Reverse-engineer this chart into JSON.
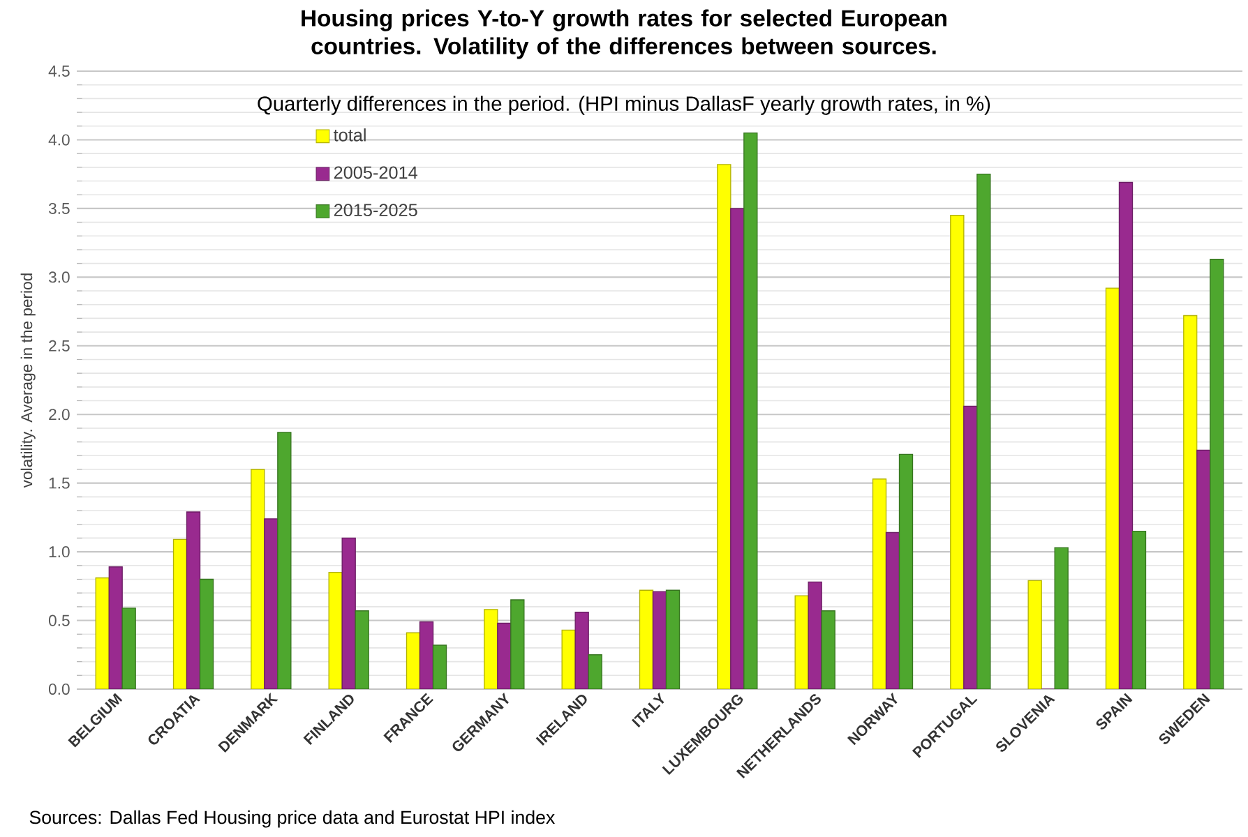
{
  "chart_data": {
    "type": "bar",
    "title": "Housing prices Y-to-Y growth rates for selected European countries. Volatility of the differences between sources.",
    "subtitle": "Quarterly differences in the period. (HPI minus DallasF yearly growth rates, in %)",
    "ylabel": "volatility. Average in the period",
    "annotations": [
      "Sources: Dallas Fed Housing price data and Eurostat HPI index"
    ],
    "categories": [
      "BELGIUM",
      "CROATIA",
      "DENMARK",
      "FINLAND",
      "FRANCE",
      "GERMANY",
      "IRELAND",
      "ITALY",
      "LUXEMBOURG",
      "NETHERLANDS",
      "NORWAY",
      "PORTUGAL",
      "SLOVENIA",
      "SPAIN",
      "SWEDEN"
    ],
    "series": [
      {
        "name": "total",
        "color": "#ffff00",
        "values": [
          0.81,
          1.09,
          1.6,
          0.85,
          0.41,
          0.58,
          0.43,
          0.72,
          3.82,
          0.68,
          1.53,
          3.45,
          0.79,
          2.92,
          2.72
        ]
      },
      {
        "name": "2005-2014",
        "color": "#992a8f",
        "values": [
          0.89,
          1.29,
          1.24,
          1.1,
          0.49,
          0.48,
          0.56,
          0.71,
          3.5,
          0.78,
          1.14,
          2.06,
          0,
          3.69,
          1.74
        ]
      },
      {
        "name": "2015-2025",
        "color": "#4ea72e",
        "values": [
          0.59,
          0.8,
          1.87,
          0.57,
          0.32,
          0.65,
          0.25,
          0.72,
          4.05,
          0.57,
          1.71,
          3.75,
          1.03,
          1.15,
          3.13
        ]
      }
    ],
    "ylim": [
      0,
      4.5
    ],
    "yticks": [
      {
        "value": 0,
        "label": "0.0"
      },
      0.5,
      {
        "value": 1,
        "label": "1.0"
      },
      1.5,
      {
        "value": 2,
        "label": "2.0"
      },
      2.5,
      {
        "value": 3,
        "label": "3.0"
      },
      3.5,
      {
        "value": 4,
        "label": "4.0"
      },
      4.5
    ],
    "grid": "y",
    "legend": "top left"
  }
}
